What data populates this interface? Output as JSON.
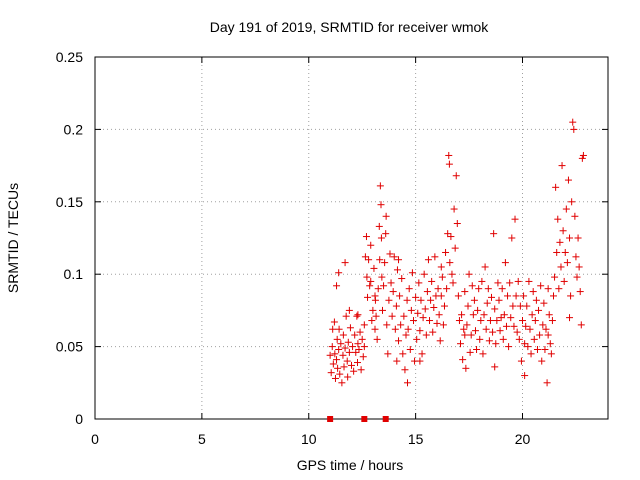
{
  "chart_data": {
    "type": "scatter",
    "title": "Day 191 of 2019, SRMTID for receiver wmok",
    "xlabel": "GPS time / hours",
    "ylabel": "SRMTID / TECUs",
    "xlim": [
      0,
      24
    ],
    "ylim": [
      0,
      0.25
    ],
    "xticks": [
      0,
      5,
      10,
      15,
      20
    ],
    "yticks": [
      0,
      0.05,
      0.1,
      0.15,
      0.2,
      0.25
    ],
    "xtick_labels": [
      "0",
      "5",
      "10",
      "15",
      "20"
    ],
    "ytick_labels": [
      "0",
      "0.05",
      "0.1",
      "0.15",
      "0.2",
      "0.25"
    ],
    "grid": true,
    "marker": "+",
    "color": "#e00000",
    "zero_markers": [
      11.0,
      12.6,
      13.6
    ],
    "series": [
      {
        "points": [
          [
            11.0,
            0.044
          ],
          [
            11.05,
            0.032
          ],
          [
            11.1,
            0.05
          ],
          [
            11.12,
            0.062
          ],
          [
            11.15,
            0.038
          ],
          [
            11.2,
            0.067
          ],
          [
            11.22,
            0.045
          ],
          [
            11.25,
            0.028
          ],
          [
            11.3,
            0.041
          ],
          [
            11.33,
            0.055
          ],
          [
            11.35,
            0.035
          ],
          [
            11.4,
            0.048
          ],
          [
            11.42,
            0.062
          ],
          [
            11.45,
            0.031
          ],
          [
            11.5,
            0.052
          ],
          [
            11.55,
            0.025
          ],
          [
            11.6,
            0.044
          ],
          [
            11.62,
            0.058
          ],
          [
            11.65,
            0.036
          ],
          [
            11.7,
            0.049
          ],
          [
            11.75,
            0.071
          ],
          [
            11.8,
            0.04
          ],
          [
            11.82,
            0.029
          ],
          [
            11.85,
            0.053
          ],
          [
            11.9,
            0.046
          ],
          [
            11.95,
            0.063
          ],
          [
            12.0,
            0.037
          ],
          [
            12.05,
            0.05
          ],
          [
            12.1,
            0.033
          ],
          [
            12.15,
            0.058
          ],
          [
            12.2,
            0.046
          ],
          [
            12.25,
            0.071
          ],
          [
            12.28,
            0.039
          ],
          [
            12.3,
            0.052
          ],
          [
            12.35,
            0.048
          ],
          [
            12.4,
            0.06
          ],
          [
            12.45,
            0.034
          ],
          [
            12.5,
            0.055
          ],
          [
            12.55,
            0.043
          ],
          [
            12.6,
            0.05
          ],
          [
            11.3,
            0.092
          ],
          [
            11.4,
            0.101
          ],
          [
            11.7,
            0.108
          ],
          [
            11.9,
            0.075
          ],
          [
            12.3,
            0.072
          ],
          [
            12.6,
            0.065
          ],
          [
            12.65,
            0.112
          ],
          [
            12.7,
            0.126
          ],
          [
            12.72,
            0.098
          ],
          [
            12.75,
            0.084
          ],
          [
            12.8,
            0.11
          ],
          [
            12.85,
            0.092
          ],
          [
            12.9,
            0.12
          ],
          [
            12.95,
            0.068
          ],
          [
            13.0,
            0.075
          ],
          [
            13.05,
            0.104
          ],
          [
            13.1,
            0.062
          ],
          [
            13.12,
            0.082
          ],
          [
            13.15,
            0.071
          ],
          [
            13.2,
            0.055
          ],
          [
            13.25,
            0.09
          ],
          [
            13.3,
            0.133
          ],
          [
            13.32,
            0.11
          ],
          [
            13.35,
            0.161
          ],
          [
            13.38,
            0.148
          ],
          [
            13.4,
            0.125
          ],
          [
            13.42,
            0.098
          ],
          [
            13.45,
            0.075
          ],
          [
            13.5,
            0.092
          ],
          [
            13.55,
            0.108
          ],
          [
            13.6,
            0.128
          ],
          [
            13.62,
            0.14
          ],
          [
            13.65,
            0.065
          ],
          [
            13.7,
            0.045
          ],
          [
            13.75,
            0.082
          ],
          [
            13.8,
            0.114
          ],
          [
            13.85,
            0.094
          ],
          [
            13.9,
            0.071
          ],
          [
            13.95,
            0.088
          ],
          [
            14.0,
            0.112
          ],
          [
            14.05,
            0.062
          ],
          [
            14.1,
            0.078
          ],
          [
            14.12,
            0.04
          ],
          [
            14.15,
            0.103
          ],
          [
            14.2,
            0.054
          ],
          [
            14.25,
            0.085
          ],
          [
            14.3,
            0.065
          ],
          [
            14.35,
            0.097
          ],
          [
            14.4,
            0.045
          ],
          [
            14.45,
            0.071
          ],
          [
            14.5,
            0.034
          ],
          [
            14.55,
            0.058
          ],
          [
            14.6,
            0.082
          ],
          [
            14.62,
            0.025
          ],
          [
            14.65,
            0.062
          ],
          [
            14.7,
            0.09
          ],
          [
            14.75,
            0.048
          ],
          [
            14.8,
            0.075
          ],
          [
            14.85,
            0.101
          ],
          [
            14.9,
            0.068
          ],
          [
            14.95,
            0.04
          ],
          [
            15.0,
            0.084
          ],
          [
            15.05,
            0.055
          ],
          [
            15.1,
            0.073
          ],
          [
            15.15,
            0.094
          ],
          [
            15.2,
            0.061
          ],
          [
            15.25,
            0.082
          ],
          [
            15.3,
            0.045
          ],
          [
            15.35,
            0.07
          ],
          [
            15.4,
            0.1
          ],
          [
            15.45,
            0.076
          ],
          [
            15.5,
            0.058
          ],
          [
            15.55,
            0.088
          ],
          [
            15.6,
            0.11
          ],
          [
            15.65,
            0.068
          ],
          [
            15.7,
            0.082
          ],
          [
            15.75,
            0.095
          ],
          [
            15.8,
            0.06
          ],
          [
            15.85,
            0.077
          ],
          [
            15.9,
            0.112
          ],
          [
            15.95,
            0.085
          ],
          [
            16.0,
            0.066
          ],
          [
            16.05,
            0.09
          ],
          [
            16.1,
            0.072
          ],
          [
            16.15,
            0.054
          ],
          [
            16.2,
            0.085
          ],
          [
            16.25,
            0.098
          ],
          [
            16.3,
            0.065
          ],
          [
            16.35,
            0.078
          ],
          [
            16.4,
            0.115
          ],
          [
            16.45,
            0.09
          ],
          [
            16.5,
            0.128
          ],
          [
            16.55,
            0.182
          ],
          [
            16.58,
            0.176
          ],
          [
            16.6,
            0.108
          ],
          [
            16.65,
            0.126
          ],
          [
            16.7,
            0.1
          ],
          [
            16.75,
            0.094
          ],
          [
            16.8,
            0.145
          ],
          [
            16.85,
            0.118
          ],
          [
            16.9,
            0.168
          ],
          [
            16.95,
            0.135
          ],
          [
            17.0,
            0.085
          ],
          [
            17.05,
            0.068
          ],
          [
            17.1,
            0.052
          ],
          [
            17.15,
            0.072
          ],
          [
            17.2,
            0.041
          ],
          [
            17.25,
            0.062
          ],
          [
            17.3,
            0.088
          ],
          [
            17.35,
            0.035
          ],
          [
            17.4,
            0.065
          ],
          [
            17.45,
            0.078
          ],
          [
            17.5,
            0.1
          ],
          [
            17.55,
            0.046
          ],
          [
            17.6,
            0.058
          ],
          [
            17.65,
            0.092
          ],
          [
            17.7,
            0.072
          ],
          [
            17.75,
            0.082
          ],
          [
            17.8,
            0.061
          ],
          [
            17.85,
            0.048
          ],
          [
            17.9,
            0.075
          ],
          [
            17.95,
            0.09
          ],
          [
            18.0,
            0.055
          ],
          [
            18.05,
            0.068
          ],
          [
            18.1,
            0.095
          ],
          [
            18.15,
            0.045
          ],
          [
            18.2,
            0.072
          ],
          [
            18.25,
            0.105
          ],
          [
            18.3,
            0.062
          ],
          [
            18.35,
            0.08
          ],
          [
            18.4,
            0.09
          ],
          [
            18.45,
            0.054
          ],
          [
            18.5,
            0.068
          ],
          [
            18.55,
            0.084
          ],
          [
            18.6,
            0.06
          ],
          [
            18.65,
            0.128
          ],
          [
            18.7,
            0.076
          ],
          [
            18.75,
            0.052
          ],
          [
            18.8,
            0.068
          ],
          [
            18.85,
            0.094
          ],
          [
            18.9,
            0.082
          ],
          [
            18.95,
            0.061
          ],
          [
            19.0,
            0.07
          ],
          [
            19.05,
            0.09
          ],
          [
            19.1,
            0.055
          ],
          [
            19.15,
            0.072
          ],
          [
            19.2,
            0.108
          ],
          [
            19.25,
            0.064
          ],
          [
            19.3,
            0.085
          ],
          [
            19.35,
            0.05
          ],
          [
            19.4,
            0.094
          ],
          [
            19.45,
            0.07
          ],
          [
            19.5,
            0.125
          ],
          [
            19.55,
            0.078
          ],
          [
            19.6,
            0.064
          ],
          [
            19.65,
            0.138
          ],
          [
            19.7,
            0.085
          ],
          [
            19.75,
            0.06
          ],
          [
            19.8,
            0.095
          ],
          [
            19.85,
            0.055
          ],
          [
            19.9,
            0.078
          ],
          [
            19.95,
            0.04
          ],
          [
            20.0,
            0.068
          ],
          [
            20.05,
            0.085
          ],
          [
            20.1,
            0.052
          ],
          [
            20.15,
            0.064
          ],
          [
            20.2,
            0.078
          ],
          [
            20.25,
            0.05
          ],
          [
            20.3,
            0.095
          ],
          [
            20.35,
            0.062
          ],
          [
            20.4,
            0.045
          ],
          [
            20.45,
            0.072
          ],
          [
            20.5,
            0.088
          ],
          [
            20.55,
            0.055
          ],
          [
            20.6,
            0.068
          ],
          [
            20.65,
            0.082
          ],
          [
            20.7,
            0.048
          ],
          [
            20.75,
            0.075
          ],
          [
            20.8,
            0.058
          ],
          [
            20.85,
            0.092
          ],
          [
            20.9,
            0.04
          ],
          [
            20.95,
            0.065
          ],
          [
            21.0,
            0.08
          ],
          [
            21.05,
            0.048
          ],
          [
            21.1,
            0.062
          ],
          [
            21.15,
            0.025
          ],
          [
            21.2,
            0.058
          ],
          [
            21.25,
            0.072
          ],
          [
            21.3,
            0.052
          ],
          [
            21.35,
            0.045
          ],
          [
            21.4,
            0.068
          ],
          [
            21.45,
            0.085
          ],
          [
            21.5,
            0.098
          ],
          [
            21.55,
            0.16
          ],
          [
            21.6,
            0.115
          ],
          [
            21.65,
            0.138
          ],
          [
            21.7,
            0.09
          ],
          [
            21.75,
            0.122
          ],
          [
            21.8,
            0.105
          ],
          [
            21.85,
            0.175
          ],
          [
            21.9,
            0.13
          ],
          [
            21.95,
            0.095
          ],
          [
            22.0,
            0.115
          ],
          [
            22.05,
            0.145
          ],
          [
            22.1,
            0.108
          ],
          [
            22.15,
            0.165
          ],
          [
            22.2,
            0.125
          ],
          [
            22.25,
            0.085
          ],
          [
            22.3,
            0.15
          ],
          [
            22.35,
            0.205
          ],
          [
            22.4,
            0.2
          ],
          [
            22.45,
            0.14
          ],
          [
            22.5,
            0.112
          ],
          [
            22.55,
            0.098
          ],
          [
            22.6,
            0.125
          ],
          [
            22.65,
            0.105
          ],
          [
            22.7,
            0.088
          ],
          [
            22.75,
            0.065
          ],
          [
            22.8,
            0.18
          ],
          [
            22.85,
            0.182
          ],
          [
            16.2,
            0.105
          ],
          [
            17.3,
            0.058
          ],
          [
            18.7,
            0.036
          ],
          [
            20.1,
            0.03
          ],
          [
            15.2,
            0.04
          ],
          [
            14.2,
            0.11
          ],
          [
            13.1,
            0.085
          ],
          [
            12.9,
            0.095
          ],
          [
            21.2,
            0.09
          ],
          [
            22.2,
            0.07
          ]
        ]
      }
    ]
  }
}
